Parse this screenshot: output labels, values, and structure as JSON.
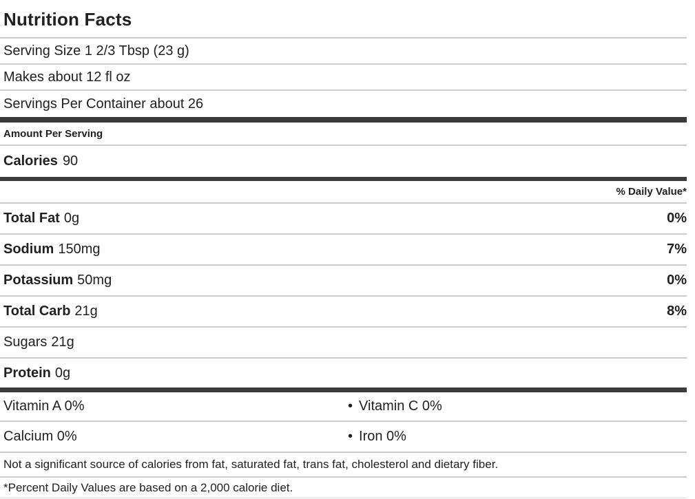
{
  "label": {
    "title": "Nutrition Facts",
    "serving_size": "Serving Size 1 2/3 Tbsp (23 g)",
    "makes": "Makes about 12 fl oz",
    "servings_per_container": "Servings Per Container about 26",
    "amount_per_serving": "Amount Per Serving",
    "calories_label": "Calories",
    "calories_value": "90",
    "daily_value_header": "% Daily Value*",
    "nutrients": [
      {
        "name": "Total Fat",
        "amount": "0g",
        "dv": "0%"
      },
      {
        "name": "Sodium",
        "amount": "150mg",
        "dv": "7%"
      },
      {
        "name": "Potassium",
        "amount": "50mg",
        "dv": "0%"
      },
      {
        "name": "Total Carb",
        "amount": "21g",
        "dv": "8%"
      },
      {
        "name": "Sugars",
        "amount": "21g",
        "dv": ""
      },
      {
        "name": "Protein",
        "amount": "0g",
        "dv": ""
      }
    ],
    "bullet": "•",
    "micronutrients": [
      {
        "left": "Vitamin A 0%",
        "right": "Vitamin C 0%"
      },
      {
        "left": "Calcium 0%",
        "right": "Iron 0%"
      }
    ],
    "footnote_sources": "Not a significant source of calories from fat, saturated fat, trans fat, cholesterol and dietary fiber.",
    "footnote_daily_values": "*Percent Daily Values are based on a 2,000 calorie diet."
  },
  "colors": {
    "text": "#212121",
    "thick_bar": "#3b3b3b",
    "thin_line": "#cccccc",
    "background": "#ffffff"
  }
}
